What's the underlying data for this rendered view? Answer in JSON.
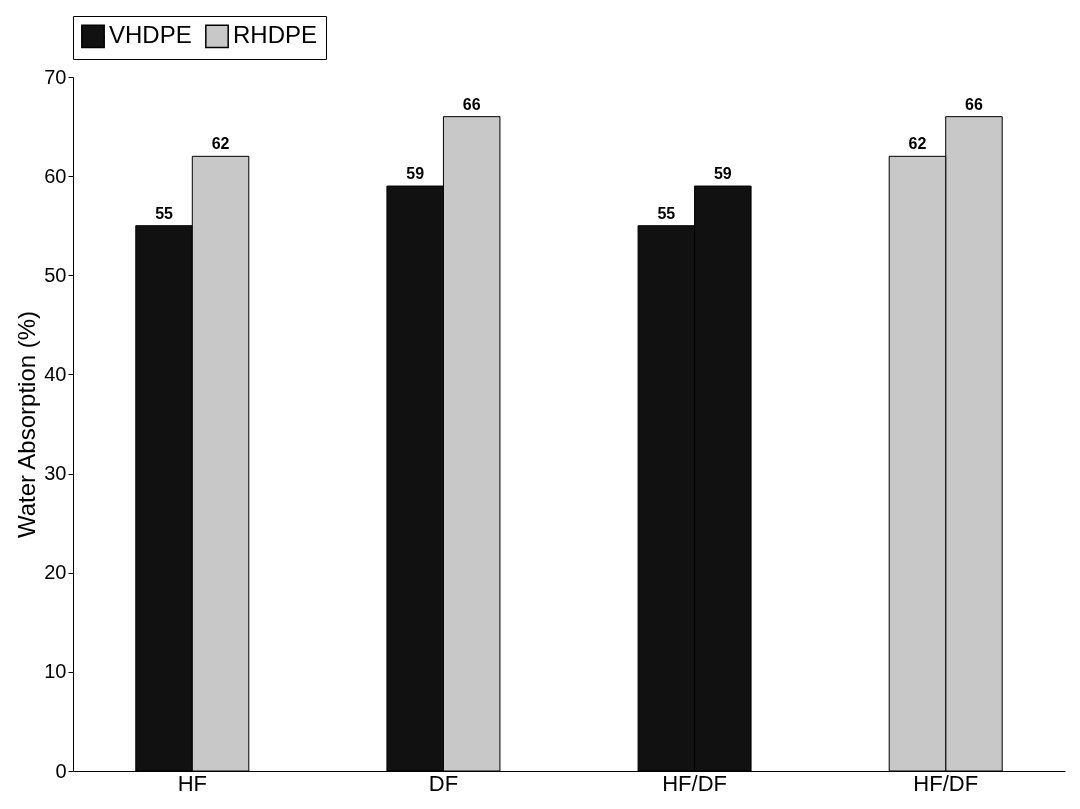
{
  "chart_data": {
    "type": "bar",
    "ylabel": "Water Absorption (%)",
    "categories": [
      "HF",
      "DF",
      "HF/DF",
      "HF/DF"
    ],
    "series": [
      {
        "name": "VHDPE",
        "color": "#111111",
        "values": [
          55,
          59,
          55,
          null
        ]
      },
      {
        "color": "#c8c8c8",
        "values": [
          null,
          null,
          null,
          62
        ]
      },
      {
        "name": "RHDPE",
        "color": "#c8c8c8",
        "values": [
          62,
          66,
          null,
          66
        ]
      },
      {
        "color": "#111111",
        "values": [
          null,
          null,
          59,
          null
        ]
      }
    ],
    "ylim": [
      0,
      70
    ],
    "yticks": [
      0,
      10,
      20,
      30,
      40,
      50,
      60,
      70
    ],
    "grid": false,
    "legend": "top",
    "data_labels": true
  }
}
